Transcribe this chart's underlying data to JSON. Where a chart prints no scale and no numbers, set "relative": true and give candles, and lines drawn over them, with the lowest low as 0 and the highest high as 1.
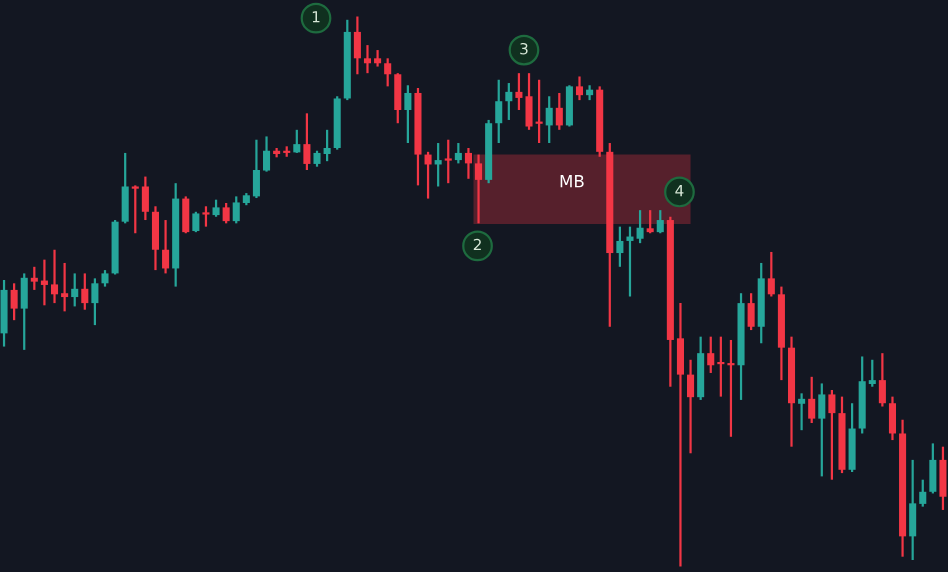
{
  "chart_data": {
    "type": "candlestick",
    "relative": true,
    "categories": [
      null,
      null,
      null,
      null,
      null,
      null,
      null,
      null,
      null,
      null,
      null,
      null,
      null,
      null,
      null,
      null,
      null,
      null,
      null,
      null,
      null,
      null,
      null,
      null,
      null,
      null,
      null,
      null,
      null,
      null,
      null,
      null,
      null,
      null,
      null,
      null,
      null,
      null,
      null,
      null,
      null,
      null,
      null,
      null,
      null,
      null,
      null,
      null,
      null,
      null,
      null,
      null,
      null,
      null,
      null,
      null,
      null,
      null,
      null,
      null,
      null,
      null,
      null,
      null,
      null,
      null,
      null,
      null,
      null,
      null,
      null,
      null,
      null,
      null,
      null,
      null,
      null,
      null,
      null,
      null,
      null,
      null,
      null,
      null,
      null,
      null,
      null,
      null,
      null,
      null,
      null,
      null,
      null,
      null
    ],
    "ohlc": [
      [
        0.424,
        0.521,
        0.4,
        0.503
      ],
      [
        0.503,
        0.515,
        0.448,
        0.469
      ],
      [
        0.469,
        0.533,
        0.394,
        0.525
      ],
      [
        0.525,
        0.545,
        0.503,
        0.518
      ],
      [
        0.52,
        0.558,
        0.475,
        0.512
      ],
      [
        0.513,
        0.576,
        0.479,
        0.495
      ],
      [
        0.497,
        0.552,
        0.464,
        0.49
      ],
      [
        0.49,
        0.533,
        0.473,
        0.505
      ],
      [
        0.505,
        0.533,
        0.467,
        0.479
      ],
      [
        0.479,
        0.524,
        0.439,
        0.515
      ],
      [
        0.515,
        0.539,
        0.509,
        0.533
      ],
      [
        0.533,
        0.63,
        0.531,
        0.627
      ],
      [
        0.627,
        0.752,
        0.624,
        0.691
      ],
      [
        0.691,
        0.693,
        0.606,
        0.687
      ],
      [
        0.691,
        0.709,
        0.63,
        0.645
      ],
      [
        0.645,
        0.655,
        0.539,
        0.576
      ],
      [
        0.576,
        0.63,
        0.533,
        0.542
      ],
      [
        0.542,
        0.697,
        0.509,
        0.669
      ],
      [
        0.669,
        0.673,
        0.606,
        0.608
      ],
      [
        0.61,
        0.645,
        0.608,
        0.642
      ],
      [
        0.642,
        0.655,
        0.618,
        0.64
      ],
      [
        0.639,
        0.667,
        0.636,
        0.653
      ],
      [
        0.653,
        0.661,
        0.624,
        0.628
      ],
      [
        0.628,
        0.673,
        0.624,
        0.662
      ],
      [
        0.661,
        0.679,
        0.657,
        0.675
      ],
      [
        0.673,
        0.776,
        0.67,
        0.721
      ],
      [
        0.72,
        0.782,
        0.718,
        0.756
      ],
      [
        0.756,
        0.761,
        0.744,
        0.75
      ],
      [
        0.753,
        0.764,
        0.745,
        0.752
      ],
      [
        0.753,
        0.794,
        0.752,
        0.768
      ],
      [
        0.768,
        0.824,
        0.721,
        0.732
      ],
      [
        0.732,
        0.756,
        0.727,
        0.752
      ],
      [
        0.75,
        0.794,
        0.737,
        0.761
      ],
      [
        0.761,
        0.855,
        0.758,
        0.851
      ],
      [
        0.851,
        0.994,
        0.848,
        0.972
      ],
      [
        0.972,
        1.0,
        0.895,
        0.924
      ],
      [
        0.924,
        0.948,
        0.897,
        0.915
      ],
      [
        0.924,
        0.939,
        0.909,
        0.915
      ],
      [
        0.915,
        0.924,
        0.873,
        0.895
      ],
      [
        0.895,
        0.897,
        0.806,
        0.83
      ],
      [
        0.83,
        0.875,
        0.77,
        0.861
      ],
      [
        0.861,
        0.87,
        0.693,
        0.749
      ],
      [
        0.749,
        0.754,
        0.669,
        0.731
      ],
      [
        0.731,
        0.77,
        0.691,
        0.739
      ],
      [
        0.739,
        0.776,
        0.697,
        0.738
      ],
      [
        0.739,
        0.77,
        0.733,
        0.752
      ],
      [
        0.752,
        0.761,
        0.705,
        0.733
      ],
      [
        0.733,
        0.749,
        0.624,
        0.703
      ],
      [
        0.703,
        0.812,
        0.697,
        0.806
      ],
      [
        0.806,
        0.885,
        0.77,
        0.846
      ],
      [
        0.846,
        0.879,
        0.812,
        0.863
      ],
      [
        0.863,
        0.897,
        0.83,
        0.852
      ],
      [
        0.855,
        0.897,
        0.794,
        0.8
      ],
      [
        0.806,
        0.885,
        0.77,
        0.805
      ],
      [
        0.802,
        0.855,
        0.77,
        0.834
      ],
      [
        0.834,
        0.861,
        0.794,
        0.802
      ],
      [
        0.802,
        0.875,
        0.8,
        0.873
      ],
      [
        0.873,
        0.891,
        0.848,
        0.857
      ],
      [
        0.857,
        0.875,
        0.848,
        0.867
      ],
      [
        0.867,
        0.873,
        0.745,
        0.754
      ],
      [
        0.754,
        0.77,
        0.436,
        0.57
      ],
      [
        0.57,
        0.618,
        0.545,
        0.592
      ],
      [
        0.592,
        0.618,
        0.491,
        0.6
      ],
      [
        0.596,
        0.648,
        0.588,
        0.616
      ],
      [
        0.615,
        0.648,
        0.606,
        0.608
      ],
      [
        0.608,
        0.648,
        0.606,
        0.63
      ],
      [
        0.63,
        0.636,
        0.327,
        0.412
      ],
      [
        0.415,
        0.479,
        0.0,
        0.349
      ],
      [
        0.349,
        0.376,
        0.206,
        0.308
      ],
      [
        0.308,
        0.418,
        0.303,
        0.388
      ],
      [
        0.388,
        0.418,
        0.352,
        0.366
      ],
      [
        0.37,
        0.418,
        0.309,
        0.368
      ],
      [
        0.367,
        0.412,
        0.236,
        0.366
      ],
      [
        0.366,
        0.497,
        0.303,
        0.479
      ],
      [
        0.479,
        0.497,
        0.43,
        0.436
      ],
      [
        0.436,
        0.552,
        0.406,
        0.524
      ],
      [
        0.524,
        0.572,
        0.491,
        0.495
      ],
      [
        0.495,
        0.509,
        0.339,
        0.398
      ],
      [
        0.398,
        0.418,
        0.218,
        0.297
      ],
      [
        0.296,
        0.315,
        0.248,
        0.305
      ],
      [
        0.305,
        0.345,
        0.261,
        0.269
      ],
      [
        0.269,
        0.333,
        0.164,
        0.313
      ],
      [
        0.313,
        0.321,
        0.158,
        0.279
      ],
      [
        0.279,
        0.309,
        0.17,
        0.176
      ],
      [
        0.176,
        0.297,
        0.172,
        0.251
      ],
      [
        0.251,
        0.382,
        0.242,
        0.337
      ],
      [
        0.332,
        0.376,
        0.327,
        0.339
      ],
      [
        0.339,
        0.388,
        0.291,
        0.297
      ],
      [
        0.297,
        0.309,
        0.23,
        0.242
      ],
      [
        0.242,
        0.267,
        0.018,
        0.055
      ],
      [
        0.055,
        0.194,
        0.012,
        0.115
      ],
      [
        0.114,
        0.158,
        0.109,
        0.136
      ],
      [
        0.136,
        0.224,
        0.133,
        0.194
      ],
      [
        0.194,
        0.218,
        0.103,
        0.127
      ]
    ],
    "colors": [
      "#26a69a",
      "#f23645",
      "#26a69a",
      "#f23645",
      "#f23645",
      "#f23645",
      "#f23645",
      "#26a69a",
      "#f23645",
      "#26a69a",
      "#26a69a",
      "#26a69a",
      "#26a69a",
      "#f23645",
      "#f23645",
      "#f23645",
      "#f23645",
      "#26a69a",
      "#f23645",
      "#26a69a",
      "#f23645",
      "#26a69a",
      "#f23645",
      "#26a69a",
      "#26a69a",
      "#26a69a",
      "#26a69a",
      "#f23645",
      "#f23645",
      "#26a69a",
      "#f23645",
      "#26a69a",
      "#26a69a",
      "#26a69a",
      "#26a69a",
      "#f23645",
      "#f23645",
      "#f23645",
      "#f23645",
      "#f23645",
      "#26a69a",
      "#f23645",
      "#f23645",
      "#26a69a",
      "#f23645",
      "#26a69a",
      "#f23645",
      "#f23645",
      "#26a69a",
      "#26a69a",
      "#26a69a",
      "#f23645",
      "#f23645",
      "#f23645",
      "#26a69a",
      "#f23645",
      "#26a69a",
      "#f23645",
      "#26a69a",
      "#f23645",
      "#f23645",
      "#26a69a",
      "#26a69a",
      "#26a69a",
      "#f23645",
      "#26a69a",
      "#f23645",
      "#f23645",
      "#f23645",
      "#26a69a",
      "#f23645",
      "#f23645",
      "#f23645",
      "#26a69a",
      "#f23645",
      "#26a69a",
      "#f23645",
      "#f23645",
      "#f23645",
      "#26a69a",
      "#f23645",
      "#26a69a",
      "#f23645",
      "#f23645",
      "#26a69a",
      "#26a69a",
      "#26a69a",
      "#f23645",
      "#f23645",
      "#f23645",
      "#26a69a",
      "#26a69a",
      "#26a69a",
      "#f23645"
    ],
    "bands": [
      {
        "axis": "y",
        "from": 0.623,
        "to": 0.749,
        "label": "MB",
        "color": "#f23645"
      }
    ],
    "annotations": [
      "1",
      "2",
      "3",
      "4"
    ]
  }
}
